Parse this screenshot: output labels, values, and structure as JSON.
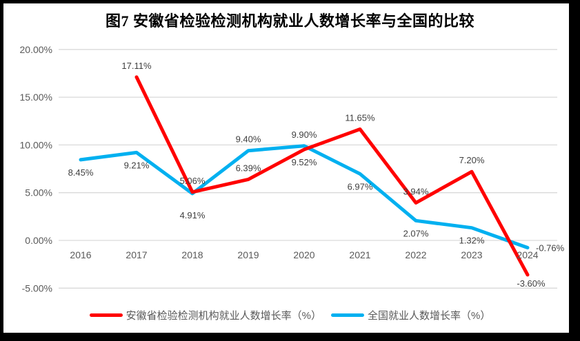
{
  "title": "图7 安徽省检验检测机构就业人数增长率与全国的比较",
  "colors": {
    "anhui_series": "#FF0000",
    "national_series": "#00B0F0",
    "gridline": "#D9D9D9",
    "axis_text": "#595959",
    "data_label_text": "#3F3F3F",
    "frame": "#000000",
    "plot_background": "#FFFFFF"
  },
  "chart_data": {
    "type": "line",
    "title": "图7 安徽省检验检测机构就业人数增长率与全国的比较",
    "categories": [
      "2016",
      "2017",
      "2018",
      "2019",
      "2020",
      "2021",
      "2022",
      "2023",
      "2024"
    ],
    "y_axis": {
      "min": -5,
      "max": 20,
      "step": 5,
      "tick_labels": [
        "20.00%",
        "15.00%",
        "10.00%",
        "5.00%",
        "0.00%",
        "-5.00%"
      ]
    },
    "grid": true,
    "legend_position": "bottom",
    "series": [
      {
        "name": "安徽省检验检测机构就业人数增长率（%）",
        "color": "#FF0000",
        "values": [
          null,
          17.11,
          5.06,
          6.39,
          9.52,
          11.65,
          3.94,
          7.2,
          -3.6
        ],
        "data_labels": [
          "",
          "17.11%",
          "5.06%",
          "6.39%",
          "9.52%",
          "11.65%",
          "3.94%",
          "7.20%",
          "-3.60%"
        ],
        "label_placements": [
          "",
          "above",
          "above",
          "above",
          "below",
          "above",
          "above",
          "above",
          "below-near"
        ]
      },
      {
        "name": "全国就业人数增长率（%）",
        "color": "#00B0F0",
        "values": [
          8.45,
          9.21,
          4.91,
          9.4,
          9.9,
          6.97,
          2.07,
          1.32,
          -0.76
        ],
        "data_labels": [
          "8.45%",
          "9.21%",
          "4.91%",
          "9.40%",
          "9.90%",
          "6.97%",
          "2.07%",
          "1.32%",
          "-0.76%"
        ],
        "label_placements": [
          "below",
          "below",
          "below-far",
          "above",
          "above",
          "below",
          "below",
          "below",
          "right"
        ]
      }
    ]
  },
  "legend": {
    "items": [
      {
        "label": "安徽省检验检测机构就业人数增长率（%）",
        "color": "#FF0000"
      },
      {
        "label": "全国就业人数增长率（%）",
        "color": "#00B0F0"
      }
    ]
  }
}
